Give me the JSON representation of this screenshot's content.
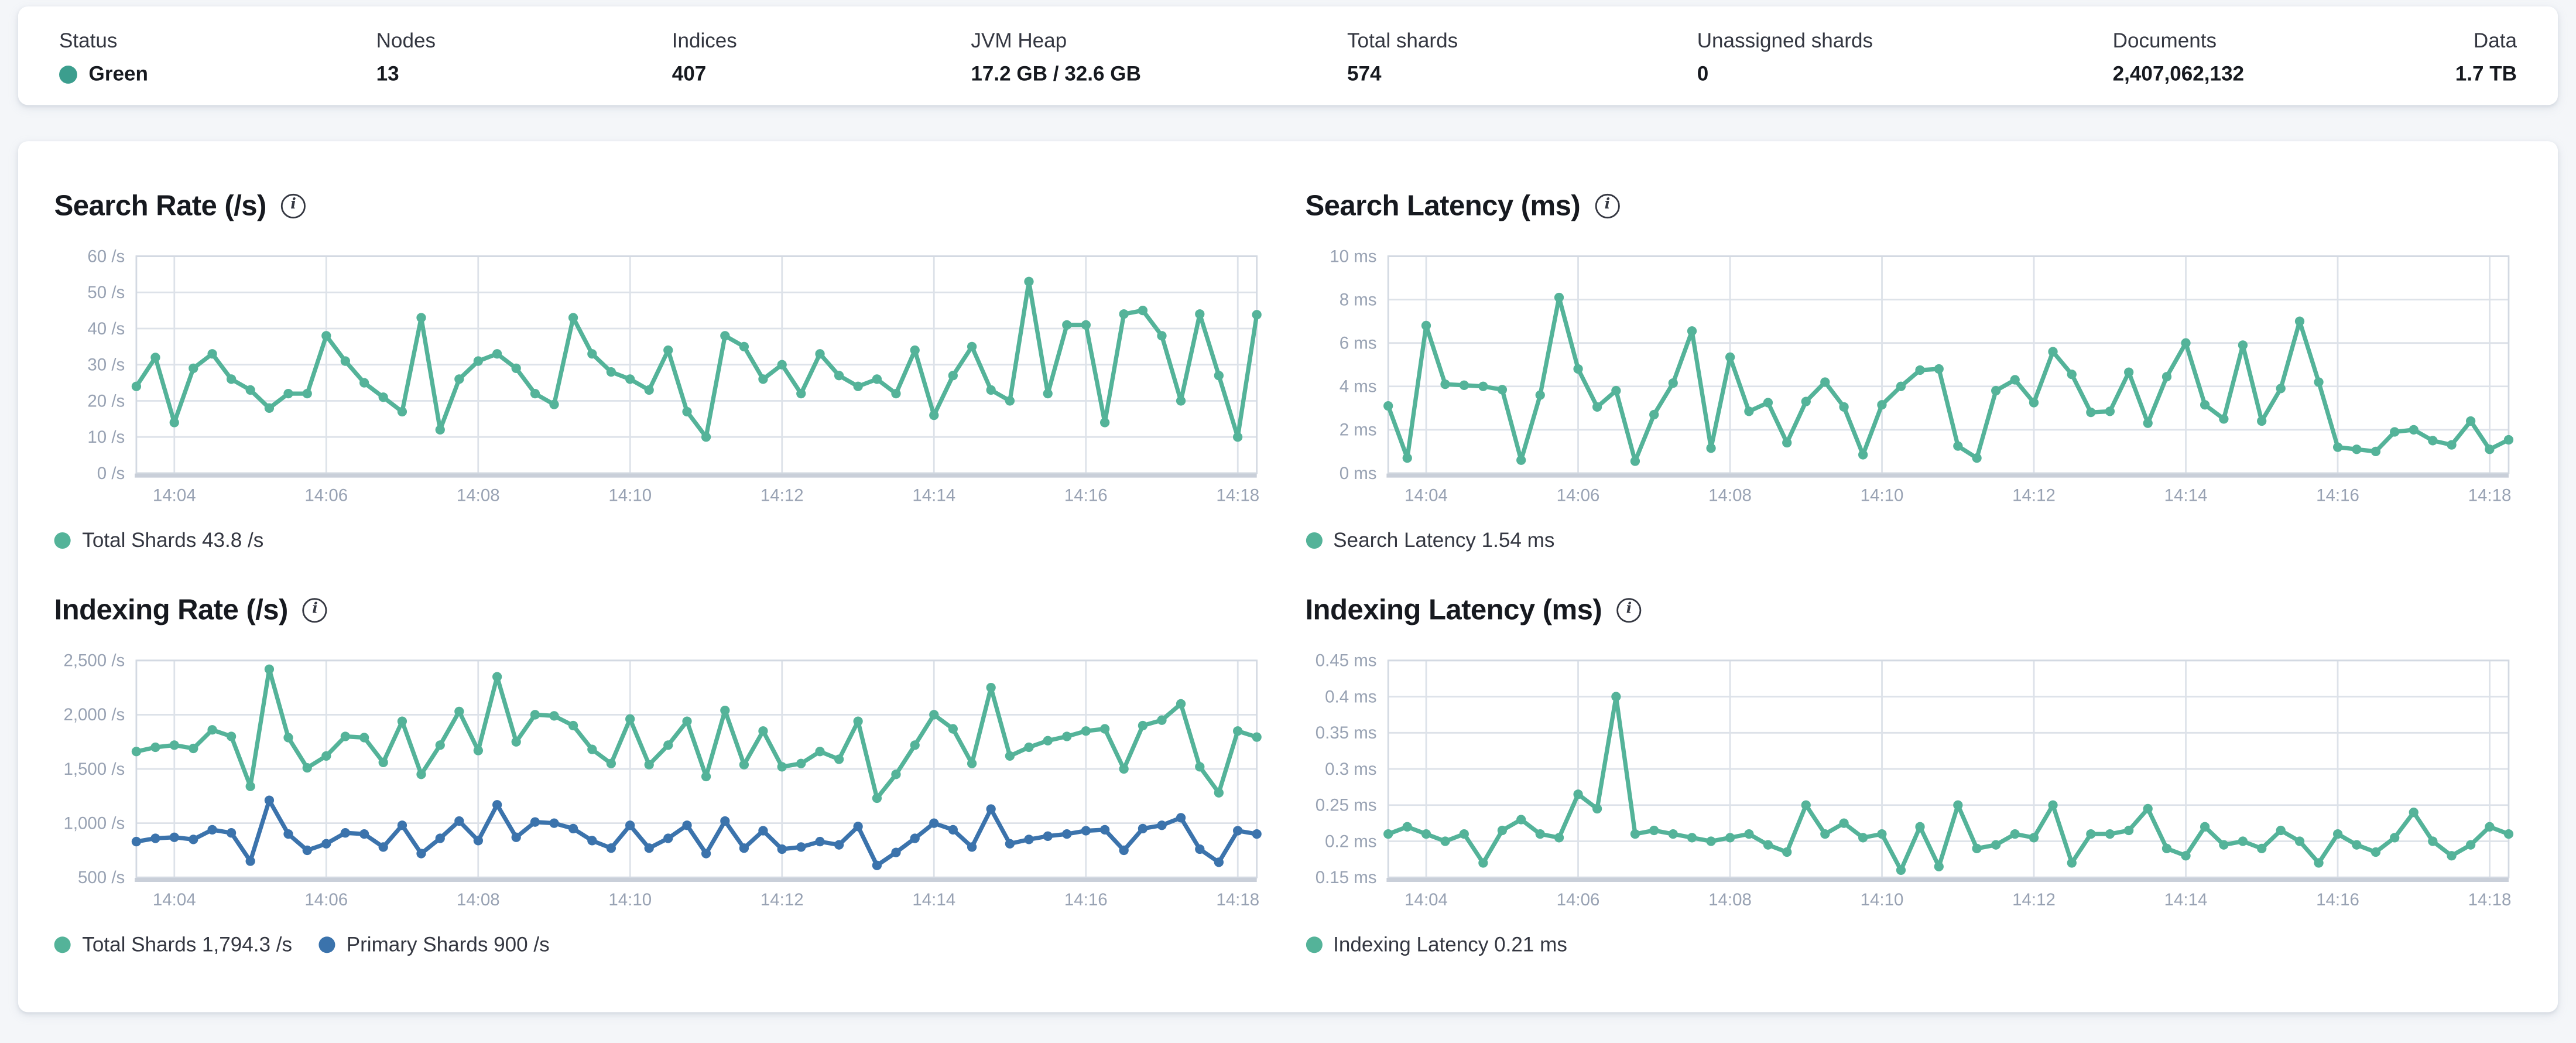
{
  "icons": {
    "info_glyph": "i"
  },
  "header": {
    "metrics": [
      {
        "label": "Status",
        "value": "Green",
        "type": "status",
        "dot_color": "#3c9e8e"
      },
      {
        "label": "Nodes",
        "value": "13"
      },
      {
        "label": "Indices",
        "value": "407"
      },
      {
        "label": "JVM Heap",
        "value": "17.2 GB / 32.6 GB"
      },
      {
        "label": "Total shards",
        "value": "574"
      },
      {
        "label": "Unassigned shards",
        "value": "0"
      },
      {
        "label": "Documents",
        "value": "2,407,062,132"
      },
      {
        "label": "Data",
        "value": "1.7 TB"
      }
    ]
  },
  "chart_data": [
    {
      "id": "search-rate",
      "type": "line",
      "title": "Search Rate (/s)",
      "ylabel": "/s",
      "ylim": [
        0,
        60
      ],
      "grid": true,
      "legend_position": "bottom",
      "n": 60,
      "y_ticks": [
        {
          "v": 0,
          "label": "0 /s"
        },
        {
          "v": 10,
          "label": "10 /s"
        },
        {
          "v": 20,
          "label": "20 /s"
        },
        {
          "v": 30,
          "label": "30 /s"
        },
        {
          "v": 40,
          "label": "40 /s"
        },
        {
          "v": 50,
          "label": "50 /s"
        },
        {
          "v": 60,
          "label": "60 /s"
        }
      ],
      "x_ticks": [
        {
          "i": 2,
          "label": "14:04"
        },
        {
          "i": 10,
          "label": "14:06"
        },
        {
          "i": 18,
          "label": "14:08"
        },
        {
          "i": 26,
          "label": "14:10"
        },
        {
          "i": 34,
          "label": "14:12"
        },
        {
          "i": 42,
          "label": "14:14"
        },
        {
          "i": 50,
          "label": "14:16"
        },
        {
          "i": 58,
          "label": "14:18"
        }
      ],
      "series": [
        {
          "name": "Total Shards",
          "legend_label": "Total Shards 43.8 /s",
          "current_value": "43.8 /s",
          "color": "#54b399",
          "values": [
            24,
            32,
            14,
            29,
            33,
            26,
            23,
            18,
            22,
            22,
            38,
            31,
            25,
            21,
            17,
            43,
            12,
            26,
            31,
            33,
            29,
            22,
            19,
            43,
            33,
            28,
            26,
            23,
            34,
            17,
            10,
            38,
            35,
            26,
            30,
            22,
            33,
            27,
            24,
            26,
            22,
            34,
            16,
            27,
            35,
            23,
            20,
            53,
            22,
            41,
            41,
            14,
            44,
            45,
            38,
            20,
            44,
            27,
            10,
            43.8
          ]
        }
      ]
    },
    {
      "id": "search-latency",
      "type": "line",
      "title": "Search Latency (ms)",
      "ylabel": "ms",
      "ylim": [
        0,
        10
      ],
      "grid": true,
      "legend_position": "bottom",
      "n": 60,
      "y_ticks": [
        {
          "v": 0,
          "label": "0 ms"
        },
        {
          "v": 2,
          "label": "2 ms"
        },
        {
          "v": 4,
          "label": "4 ms"
        },
        {
          "v": 6,
          "label": "6 ms"
        },
        {
          "v": 8,
          "label": "8 ms"
        },
        {
          "v": 10,
          "label": "10 ms"
        }
      ],
      "x_ticks": [
        {
          "i": 2,
          "label": "14:04"
        },
        {
          "i": 10,
          "label": "14:06"
        },
        {
          "i": 18,
          "label": "14:08"
        },
        {
          "i": 26,
          "label": "14:10"
        },
        {
          "i": 34,
          "label": "14:12"
        },
        {
          "i": 42,
          "label": "14:14"
        },
        {
          "i": 50,
          "label": "14:16"
        },
        {
          "i": 58,
          "label": "14:18"
        }
      ],
      "series": [
        {
          "name": "Search Latency",
          "legend_label": "Search Latency 1.54 ms",
          "current_value": "1.54 ms",
          "color": "#54b399",
          "values": [
            3.1,
            0.7,
            6.8,
            4.1,
            4.05,
            4.0,
            3.85,
            0.6,
            3.6,
            8.1,
            4.8,
            3.05,
            3.8,
            0.55,
            2.7,
            4.15,
            6.55,
            1.15,
            5.35,
            2.85,
            3.25,
            1.4,
            3.3,
            4.2,
            3.05,
            0.85,
            3.15,
            4.0,
            4.75,
            4.8,
            1.25,
            0.7,
            3.8,
            4.3,
            3.25,
            5.6,
            4.55,
            2.8,
            2.85,
            4.65,
            2.3,
            4.45,
            6.0,
            3.15,
            2.5,
            5.9,
            2.4,
            3.9,
            7.0,
            4.2,
            1.2,
            1.1,
            1.0,
            1.9,
            2.0,
            1.5,
            1.3,
            2.4,
            1.1,
            1.54
          ]
        }
      ]
    },
    {
      "id": "indexing-rate",
      "type": "line",
      "title": "Indexing Rate (/s)",
      "ylabel": "/s",
      "ylim": [
        500,
        2500
      ],
      "grid": true,
      "legend_position": "bottom",
      "n": 60,
      "y_ticks": [
        {
          "v": 500,
          "label": "500 /s"
        },
        {
          "v": 1000,
          "label": "1,000 /s"
        },
        {
          "v": 1500,
          "label": "1,500 /s"
        },
        {
          "v": 2000,
          "label": "2,000 /s"
        },
        {
          "v": 2500,
          "label": "2,500 /s"
        }
      ],
      "x_ticks": [
        {
          "i": 2,
          "label": "14:04"
        },
        {
          "i": 10,
          "label": "14:06"
        },
        {
          "i": 18,
          "label": "14:08"
        },
        {
          "i": 26,
          "label": "14:10"
        },
        {
          "i": 34,
          "label": "14:12"
        },
        {
          "i": 42,
          "label": "14:14"
        },
        {
          "i": 50,
          "label": "14:16"
        },
        {
          "i": 58,
          "label": "14:18"
        }
      ],
      "series": [
        {
          "name": "Total Shards",
          "legend_label": "Total Shards 1,794.3 /s",
          "current_value": "1,794.3 /s",
          "color": "#54b399",
          "values": [
            1660,
            1700,
            1720,
            1690,
            1860,
            1800,
            1340,
            2420,
            1790,
            1510,
            1620,
            1800,
            1790,
            1560,
            1940,
            1450,
            1720,
            2030,
            1670,
            2350,
            1750,
            2000,
            1990,
            1900,
            1680,
            1550,
            1960,
            1540,
            1720,
            1940,
            1430,
            2040,
            1540,
            1850,
            1520,
            1550,
            1660,
            1590,
            1940,
            1230,
            1450,
            1720,
            2000,
            1870,
            1550,
            2250,
            1620,
            1700,
            1760,
            1800,
            1850,
            1870,
            1500,
            1900,
            1950,
            2100,
            1520,
            1280,
            1850,
            1794.3
          ]
        },
        {
          "name": "Primary Shards",
          "legend_label": "Primary Shards 900 /s",
          "current_value": "900 /s",
          "color": "#3b73ac",
          "values": [
            830,
            860,
            870,
            850,
            940,
            910,
            650,
            1210,
            900,
            750,
            810,
            910,
            900,
            780,
            980,
            720,
            860,
            1020,
            840,
            1170,
            870,
            1010,
            1000,
            950,
            840,
            770,
            980,
            770,
            860,
            980,
            720,
            1020,
            770,
            930,
            760,
            780,
            830,
            800,
            970,
            610,
            730,
            860,
            1000,
            940,
            780,
            1130,
            810,
            850,
            880,
            900,
            930,
            940,
            750,
            950,
            980,
            1050,
            760,
            640,
            930,
            900
          ]
        }
      ]
    },
    {
      "id": "indexing-latency",
      "type": "line",
      "title": "Indexing Latency (ms)",
      "ylabel": "ms",
      "ylim": [
        0.15,
        0.45
      ],
      "grid": true,
      "legend_position": "bottom",
      "n": 60,
      "y_ticks": [
        {
          "v": 0.15,
          "label": "0.15 ms"
        },
        {
          "v": 0.2,
          "label": "0.2 ms"
        },
        {
          "v": 0.25,
          "label": "0.25 ms"
        },
        {
          "v": 0.3,
          "label": "0.3 ms"
        },
        {
          "v": 0.35,
          "label": "0.35 ms"
        },
        {
          "v": 0.4,
          "label": "0.4 ms"
        },
        {
          "v": 0.45,
          "label": "0.45 ms"
        }
      ],
      "x_ticks": [
        {
          "i": 2,
          "label": "14:04"
        },
        {
          "i": 10,
          "label": "14:06"
        },
        {
          "i": 18,
          "label": "14:08"
        },
        {
          "i": 26,
          "label": "14:10"
        },
        {
          "i": 34,
          "label": "14:12"
        },
        {
          "i": 42,
          "label": "14:14"
        },
        {
          "i": 50,
          "label": "14:16"
        },
        {
          "i": 58,
          "label": "14:18"
        }
      ],
      "series": [
        {
          "name": "Indexing Latency",
          "legend_label": "Indexing Latency 0.21 ms",
          "current_value": "0.21 ms",
          "color": "#54b399",
          "values": [
            0.21,
            0.22,
            0.21,
            0.2,
            0.21,
            0.17,
            0.215,
            0.23,
            0.21,
            0.205,
            0.265,
            0.245,
            0.4,
            0.21,
            0.215,
            0.21,
            0.205,
            0.2,
            0.205,
            0.21,
            0.195,
            0.185,
            0.25,
            0.21,
            0.225,
            0.205,
            0.21,
            0.16,
            0.22,
            0.165,
            0.25,
            0.19,
            0.195,
            0.21,
            0.205,
            0.25,
            0.17,
            0.21,
            0.21,
            0.215,
            0.245,
            0.19,
            0.18,
            0.22,
            0.195,
            0.2,
            0.19,
            0.215,
            0.2,
            0.17,
            0.21,
            0.195,
            0.185,
            0.205,
            0.24,
            0.2,
            0.18,
            0.195,
            0.22,
            0.21
          ]
        }
      ]
    }
  ]
}
